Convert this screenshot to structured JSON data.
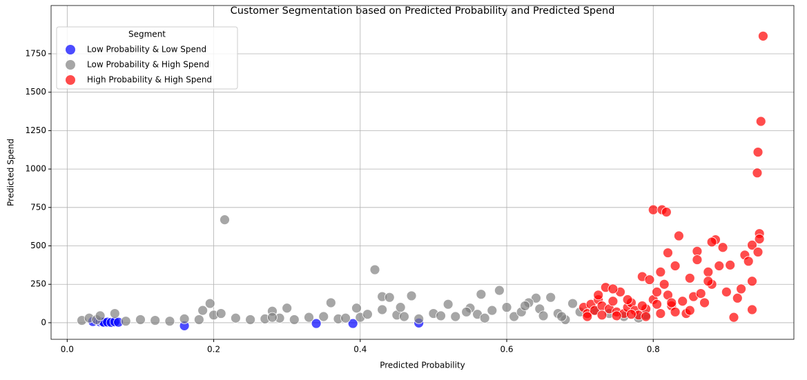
{
  "chart_data": {
    "type": "scatter",
    "title": "Customer Segmentation based on Predicted Probability and Predicted Spend",
    "x_label": "Predicted Probability",
    "y_label": "Predicted Spend",
    "legend_title": "Segment",
    "legend_position": "upper-left",
    "grid": true,
    "xlim": [
      -0.022,
      0.992
    ],
    "ylim": [
      -108,
      2064
    ],
    "xticks": [
      {
        "value": 0,
        "label": "0.0"
      },
      0.2,
      0.4,
      0.6,
      0.8
    ],
    "yticks": [
      0,
      250,
      500,
      750,
      1000,
      1250,
      1500,
      1750
    ],
    "series": [
      {
        "name": "Low Probability & Low Spend",
        "color": "#0000ff",
        "x": [
          0.035,
          0.045,
          0.048,
          0.05,
          0.055,
          0.06,
          0.065,
          0.07,
          0.16,
          0.34,
          0.39,
          0.48
        ],
        "values": [
          8,
          5,
          6,
          3,
          4,
          2,
          6,
          3,
          -20,
          -5,
          -5,
          -2
        ]
      },
      {
        "name": "Low Probability & High Spend",
        "color": "#808080",
        "x": [
          0.215,
          0.42,
          0.195,
          0.36,
          0.3,
          0.43,
          0.44,
          0.47,
          0.59,
          0.565,
          0.52,
          0.64,
          0.66,
          0.69,
          0.02,
          0.03,
          0.04,
          0.045,
          0.065,
          0.08,
          0.1,
          0.12,
          0.14,
          0.16,
          0.18,
          0.2,
          0.21,
          0.23,
          0.25,
          0.27,
          0.28,
          0.29,
          0.31,
          0.33,
          0.35,
          0.37,
          0.38,
          0.4,
          0.41,
          0.43,
          0.45,
          0.46,
          0.48,
          0.5,
          0.51,
          0.53,
          0.55,
          0.56,
          0.57,
          0.58,
          0.6,
          0.61,
          0.62,
          0.63,
          0.645,
          0.65,
          0.67,
          0.68,
          0.7,
          0.72,
          0.74,
          0.76,
          0.78,
          0.79,
          0.185,
          0.28,
          0.395,
          0.455,
          0.545,
          0.625,
          0.675
        ],
        "values": [
          670,
          345,
          125,
          130,
          95,
          170,
          165,
          175,
          210,
          185,
          120,
          160,
          165,
          125,
          15,
          30,
          20,
          45,
          60,
          10,
          20,
          15,
          10,
          25,
          20,
          50,
          60,
          30,
          20,
          25,
          75,
          30,
          20,
          35,
          40,
          25,
          30,
          35,
          55,
          85,
          50,
          40,
          25,
          60,
          45,
          40,
          95,
          55,
          30,
          80,
          100,
          40,
          70,
          130,
          90,
          45,
          60,
          20,
          70,
          80,
          60,
          40,
          30,
          50,
          80,
          35,
          95,
          100,
          70,
          110,
          40
        ]
      },
      {
        "name": "High Probability & High Spend",
        "color": "#ff0000",
        "x": [
          0.95,
          0.947,
          0.943,
          0.942,
          0.8,
          0.812,
          0.818,
          0.835,
          0.945,
          0.945,
          0.885,
          0.88,
          0.86,
          0.82,
          0.935,
          0.943,
          0.925,
          0.895,
          0.93,
          0.905,
          0.935,
          0.92,
          0.935,
          0.91,
          0.9,
          0.915,
          0.705,
          0.71,
          0.715,
          0.72,
          0.725,
          0.73,
          0.735,
          0.74,
          0.745,
          0.75,
          0.755,
          0.76,
          0.765,
          0.77,
          0.775,
          0.78,
          0.785,
          0.79,
          0.795,
          0.8,
          0.805,
          0.81,
          0.815,
          0.82,
          0.825,
          0.83,
          0.84,
          0.845,
          0.85,
          0.855,
          0.86,
          0.865,
          0.87,
          0.875,
          0.88,
          0.89,
          0.71,
          0.73,
          0.75,
          0.77,
          0.79,
          0.81,
          0.83,
          0.85,
          0.875,
          0.725,
          0.745,
          0.765,
          0.785,
          0.805,
          0.825
        ],
        "values": [
          1865,
          1310,
          1110,
          975,
          735,
          735,
          720,
          565,
          580,
          545,
          540,
          525,
          465,
          455,
          505,
          460,
          440,
          490,
          400,
          375,
          270,
          220,
          85,
          35,
          200,
          160,
          100,
          60,
          120,
          80,
          150,
          110,
          230,
          90,
          140,
          70,
          200,
          60,
          100,
          130,
          80,
          50,
          300,
          90,
          280,
          150,
          120,
          330,
          250,
          180,
          110,
          370,
          140,
          60,
          290,
          170,
          410,
          190,
          130,
          330,
          250,
          370,
          40,
          50,
          45,
          55,
          40,
          60,
          70,
          80,
          270,
          180,
          220,
          150,
          110,
          200,
          130
        ]
      }
    ]
  }
}
